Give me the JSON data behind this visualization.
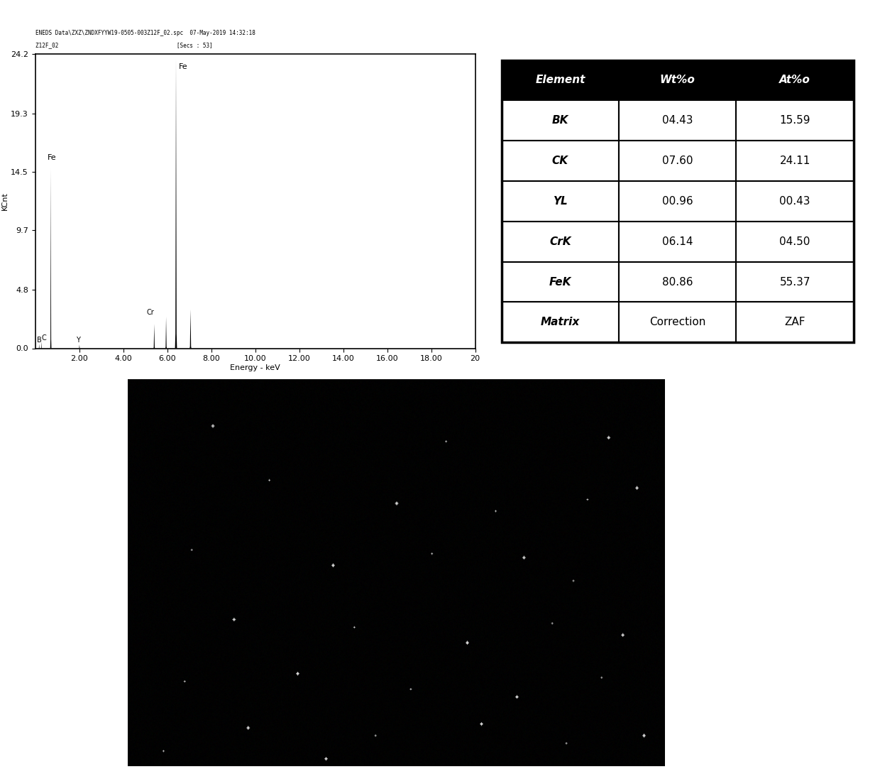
{
  "title_line1": "ENEDS Data\\ZXZ\\ZNDXFYYW19-0505-003Z12F_02.spc  07-May-2019 14:32:18",
  "title_line2": "Z12F_02                                    [Secs : 53]",
  "ylabel": "KCnt",
  "xlabel": "Energy - keV",
  "ylim": [
    0,
    24.2
  ],
  "xlim": [
    0,
    20
  ],
  "yticks": [
    0.0,
    4.8,
    9.7,
    14.5,
    19.3,
    24.2
  ],
  "xtick_vals": [
    2.0,
    4.0,
    6.0,
    8.0,
    10.0,
    12.0,
    14.0,
    16.0,
    18.0,
    20
  ],
  "xtick_labels": [
    "2.00",
    "4.00",
    "6.00",
    "8.00",
    "10.00",
    "12.00",
    "14.00",
    "16.00",
    "18.00",
    "20"
  ],
  "table_headers": [
    "Element",
    "Wt%ₒ",
    "At%ₒ"
  ],
  "table_rows": [
    [
      "BK",
      "04.43",
      "15.59"
    ],
    [
      "CK",
      "07.60",
      "24.11"
    ],
    [
      "YL",
      "00.96",
      "00.43"
    ],
    [
      "CrK",
      "06.14",
      "04.50"
    ],
    [
      "FeK",
      "80.86",
      "55.37"
    ],
    [
      "Matrix",
      "Correction",
      "ZAF"
    ]
  ],
  "header_bg": "#000000",
  "header_fg": "#ffffff",
  "row_bg": "#ffffff",
  "row_fg": "#000000",
  "spectrum_bg": "#ffffff",
  "dark_image_bg": "#000000",
  "fig_bg": "#ffffff"
}
